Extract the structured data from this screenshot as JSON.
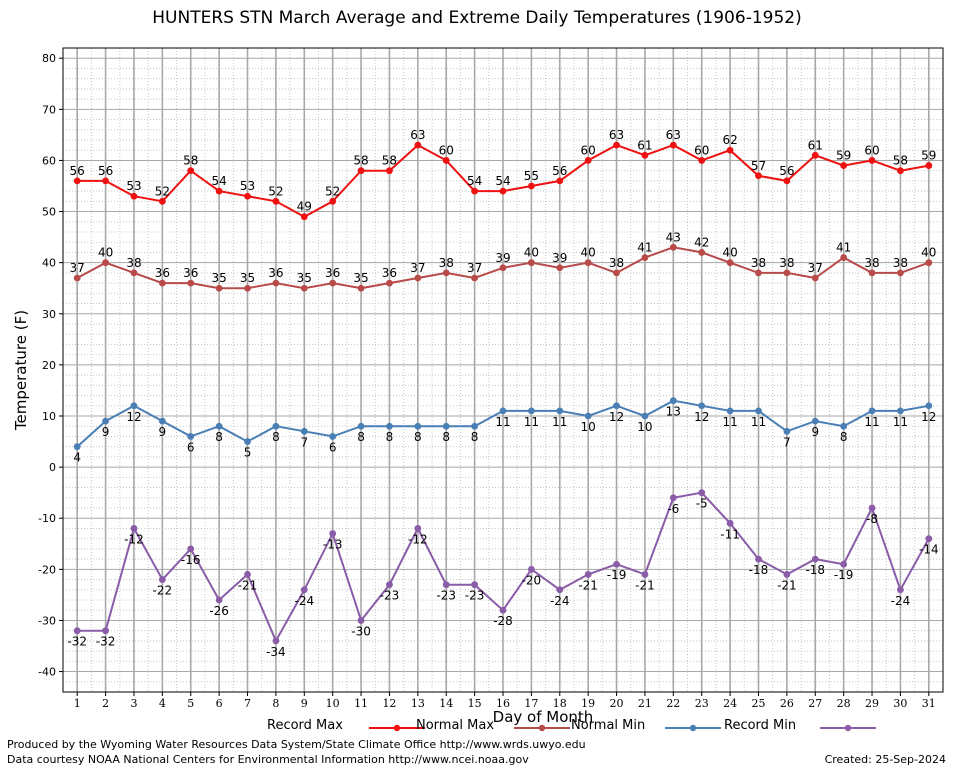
{
  "chart_data": {
    "type": "line",
    "title": "HUNTERS STN March Average and Extreme Daily Temperatures (1906-1952)",
    "xlabel": "Day of Month",
    "ylabel": "Temperature (F)",
    "xlim": [
      0.5,
      31.5
    ],
    "ylim": [
      -44,
      82
    ],
    "yticks": [
      -40,
      -30,
      -20,
      -10,
      0,
      10,
      20,
      30,
      40,
      50,
      60,
      70,
      80
    ],
    "x": [
      1,
      2,
      3,
      4,
      5,
      6,
      7,
      8,
      9,
      10,
      11,
      12,
      13,
      14,
      15,
      16,
      17,
      18,
      19,
      20,
      21,
      22,
      23,
      24,
      25,
      26,
      27,
      28,
      29,
      30,
      31
    ],
    "grid": true,
    "legend_position": "bottom",
    "series": [
      {
        "name": "Record Max",
        "color": "#ee1111",
        "label_pos": "above",
        "values": [
          56,
          56,
          53,
          52,
          58,
          54,
          53,
          52,
          49,
          52,
          58,
          58,
          63,
          60,
          54,
          54,
          55,
          56,
          60,
          63,
          61,
          63,
          60,
          62,
          57,
          56,
          61,
          59,
          60,
          58,
          59
        ]
      },
      {
        "name": "Normal Max",
        "color": "#b84a4a",
        "label_pos": "above",
        "values": [
          37,
          40,
          38,
          36,
          36,
          35,
          35,
          36,
          35,
          36,
          35,
          36,
          37,
          38,
          37,
          39,
          40,
          39,
          40,
          38,
          41,
          43,
          42,
          40,
          38,
          38,
          37,
          41,
          38,
          38,
          40
        ]
      },
      {
        "name": "Normal Min",
        "color": "#4a7fb5",
        "label_pos": "below",
        "values": [
          4,
          9,
          12,
          9,
          6,
          8,
          5,
          8,
          7,
          6,
          8,
          8,
          8,
          8,
          8,
          11,
          11,
          11,
          10,
          12,
          10,
          13,
          12,
          11,
          11,
          7,
          9,
          8,
          11,
          11,
          12
        ]
      },
      {
        "name": "Record Min",
        "color": "#8a5ca8",
        "label_pos": "below",
        "values": [
          -32,
          -32,
          -12,
          -22,
          -16,
          -26,
          -21,
          -34,
          -24,
          -13,
          -30,
          -23,
          -12,
          -23,
          -23,
          -28,
          -20,
          -24,
          -21,
          -19,
          -21,
          -6,
          -5,
          -11,
          -18,
          -21,
          -18,
          -19,
          -8,
          -24,
          -14
        ]
      }
    ]
  },
  "footer": {
    "produced_by": "Produced by the Wyoming Water Resources Data System/State Climate Office http://www.wrds.uwyo.edu",
    "data_courtesy": "Data courtesy NOAA National Centers for Environmental Information http://www.ncei.noaa.gov",
    "created": "Created:  25-Sep-2024"
  }
}
